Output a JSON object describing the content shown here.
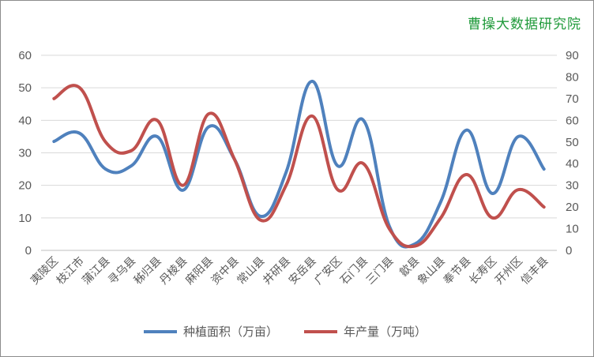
{
  "watermark": "曹操大数据研究院",
  "chart_data": {
    "type": "line",
    "smooth": true,
    "categories": [
      "夷陵区",
      "枝江市",
      "蒲江县",
      "寻乌县",
      "秭归县",
      "丹棱县",
      "麻阳县",
      "资中县",
      "常山县",
      "井研县",
      "安岳县",
      "广安区",
      "石门县",
      "三门县",
      "歙县",
      "象山县",
      "奉节县",
      "长寿区",
      "开州区",
      "信丰县"
    ],
    "series": [
      {
        "name": "种植面积（万亩）",
        "axis": "left",
        "color": "#4f81bd",
        "values": [
          33.5,
          36,
          25,
          26,
          35,
          18.5,
          38,
          28,
          10.5,
          24,
          52,
          26,
          40,
          7.5,
          2,
          15,
          37,
          17.5,
          35,
          25
        ]
      },
      {
        "name": "年产量（万吨）",
        "axis": "right",
        "color": "#c0504d",
        "values": [
          70,
          75,
          50,
          46,
          60,
          30,
          63,
          42,
          14,
          30,
          62,
          28,
          40,
          10,
          2,
          15,
          35,
          15,
          28,
          20
        ]
      }
    ],
    "left_axis": {
      "min": 0,
      "max": 60,
      "ticks": [
        0,
        10,
        20,
        30,
        40,
        50,
        60
      ]
    },
    "right_axis": {
      "min": 0,
      "max": 90,
      "ticks": [
        0,
        10,
        20,
        30,
        40,
        50,
        60,
        70,
        80,
        90
      ]
    },
    "grid": true,
    "legend_position": "bottom"
  }
}
